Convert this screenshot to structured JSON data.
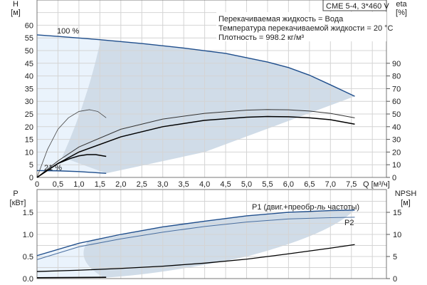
{
  "chart_data": [
    {
      "type": "line",
      "title": "CME 5-4, 3*460 V",
      "info": [
        "Перекачиваемая жидкость = Вода",
        "Температура перекачиваемой жидкости = 20 °C",
        "Плотность = 998.2 кг/м³"
      ],
      "ylabel": "H",
      "yunit": "[м]",
      "y2label": "eta",
      "y2unit": "[%]",
      "xlabel": "Q [м³/ч]",
      "xticks": [
        "0",
        "0,5",
        "1,0",
        "1,5",
        "2,0",
        "2,5",
        "3,0",
        "3,5",
        "4,0",
        "4,5",
        "5,0",
        "5,5",
        "6,0",
        "6,5",
        "7,0",
        "7,5"
      ],
      "xlim": [
        0,
        8.3
      ],
      "ylim": [
        0,
        67
      ],
      "y2lim": [
        0,
        134
      ],
      "yticks": [
        0,
        5,
        10,
        15,
        20,
        25,
        30,
        35,
        40,
        45,
        50,
        55,
        60
      ],
      "y2ticks": [
        0,
        10,
        20,
        30,
        40,
        50,
        60,
        70,
        80,
        90
      ],
      "labels": {
        "max": "100 %",
        "min": "21 %"
      },
      "series": [
        {
          "name": "H 100 %",
          "axis": "H",
          "color": "#1f4e8c",
          "x": [
            0,
            0.5,
            1.5,
            2.5,
            3.5,
            4.5,
            5.5,
            6.0,
            6.5,
            7.0,
            7.58
          ],
          "y": [
            56.2,
            55.6,
            54.3,
            52.8,
            51,
            48.9,
            45.5,
            43.3,
            40.3,
            36.5,
            32
          ]
        },
        {
          "name": "H 21 %",
          "axis": "H",
          "color": "#1f4e8c",
          "x": [
            0,
            0.5,
            1.0,
            1.65
          ],
          "y": [
            2.7,
            2.6,
            2.3,
            1.6
          ]
        },
        {
          "name": "eta upper",
          "axis": "eta",
          "color": "#333",
          "x": [
            0,
            0.5,
            1,
            2,
            3,
            4,
            5,
            5.5,
            6,
            6.5,
            7,
            7.58
          ],
          "y": [
            0,
            13,
            24,
            38,
            46,
            50.5,
            53,
            53.5,
            53.3,
            52.3,
            50.5,
            47
          ]
        },
        {
          "name": "eta lower",
          "axis": "eta",
          "color": "#000",
          "x": [
            0,
            0.5,
            1,
            2,
            3,
            4,
            5,
            5.5,
            6,
            6.5,
            7,
            7.58
          ],
          "y": [
            0,
            11,
            20,
            32,
            40,
            45,
            47.5,
            48,
            47.8,
            47,
            45.5,
            42
          ]
        },
        {
          "name": "eta small upper",
          "axis": "H",
          "color": "#444",
          "x": [
            0,
            0.25,
            0.5,
            0.75,
            1.0,
            1.25,
            1.45,
            1.65
          ],
          "y": [
            0,
            11,
            19,
            23.5,
            26,
            26.7,
            26,
            23.5
          ]
        },
        {
          "name": "eta small lower",
          "axis": "H",
          "color": "#000",
          "x": [
            0,
            0.5,
            0.8,
            1.0,
            1.2,
            1.4,
            1.65
          ],
          "y": [
            0,
            5.5,
            7.5,
            8.5,
            9,
            9,
            8.3
          ]
        }
      ]
    },
    {
      "type": "line",
      "ylabel": "P",
      "yunit": "[кВт]",
      "y2label": "NPSH",
      "y2unit": "[м]",
      "xlim": [
        0,
        8.3
      ],
      "ylim": [
        0,
        2.0
      ],
      "y2lim": [
        0,
        20
      ],
      "yticks": [
        "0.0",
        "0.5",
        "1.0",
        "1.5"
      ],
      "y2ticks": [
        "0",
        "5",
        "10",
        "15"
      ],
      "labels": {
        "p1": "P1 (двиг.+преобр-ль частоты)",
        "p2": "P2"
      },
      "series": [
        {
          "name": "P1",
          "axis": "P",
          "color": "#1f4e8c",
          "x": [
            0,
            1,
            2,
            3,
            4,
            5,
            6,
            7,
            7.58
          ],
          "y": [
            0.52,
            0.8,
            1.0,
            1.17,
            1.3,
            1.42,
            1.5,
            1.54,
            1.55
          ]
        },
        {
          "name": "P2",
          "axis": "P",
          "color": "#4a6fa0",
          "x": [
            0,
            1,
            2,
            3,
            4,
            5,
            6,
            7,
            7.58
          ],
          "y": [
            0.43,
            0.72,
            0.9,
            1.05,
            1.18,
            1.28,
            1.35,
            1.38,
            1.39
          ]
        },
        {
          "name": "NPSH",
          "axis": "NPSH",
          "color": "#000",
          "x": [
            0,
            1,
            2,
            3,
            4,
            5,
            6,
            7,
            7.58
          ],
          "y": [
            1.6,
            1.9,
            2.3,
            2.8,
            3.5,
            4.4,
            5.6,
            6.9,
            7.7
          ]
        },
        {
          "name": "P min",
          "axis": "P",
          "color": "#000",
          "x": [
            0,
            1.65
          ],
          "y": [
            0.02,
            0.03
          ]
        }
      ]
    }
  ]
}
